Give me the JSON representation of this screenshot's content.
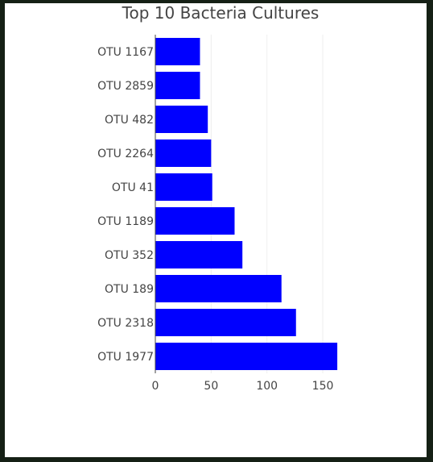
{
  "chart_data": {
    "type": "bar",
    "orientation": "horizontal",
    "title": "Top 10 Bacteria Cultures",
    "xlabel": "",
    "ylabel": "",
    "categories": [
      "OTU 1167",
      "OTU 2859",
      "OTU 482",
      "OTU 2264",
      "OTU 41",
      "OTU 1189",
      "OTU 352",
      "OTU 189",
      "OTU 2318",
      "OTU 1977"
    ],
    "values": [
      40,
      40,
      47,
      50,
      51,
      71,
      78,
      113,
      126,
      163
    ],
    "xlim": [
      0,
      170
    ],
    "xticks": [
      0,
      50,
      100,
      150
    ],
    "grid": true,
    "bar_color": "#0000ff"
  },
  "colors": {
    "background": "#152015",
    "panel": "#ffffff",
    "text": "#444444",
    "grid": "#eeeeee"
  }
}
